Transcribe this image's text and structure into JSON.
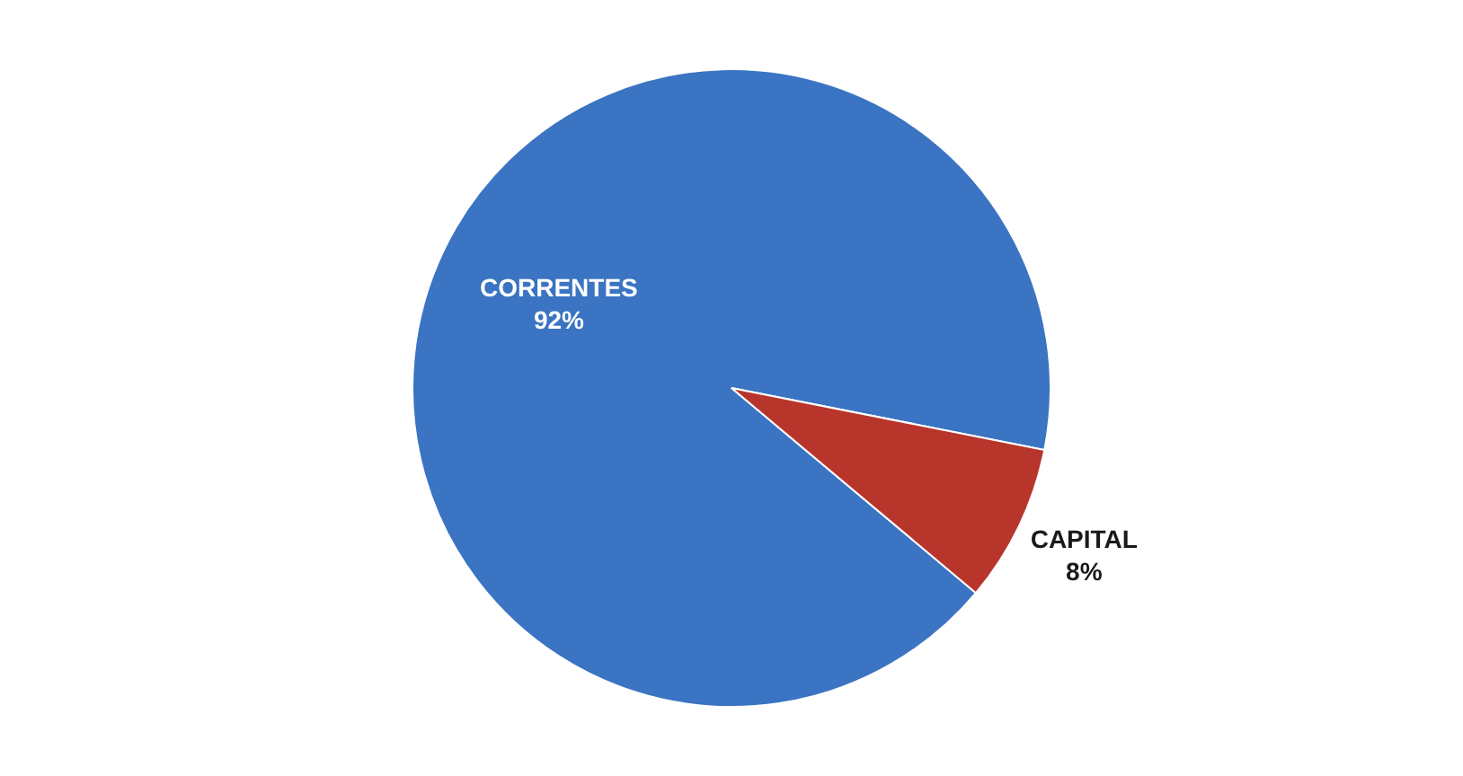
{
  "chart_data": {
    "type": "pie",
    "categories": [
      "CORRENTES",
      "CAPITAL"
    ],
    "values": [
      92,
      8
    ],
    "colors": [
      "#3a74c2",
      "#b8352c"
    ],
    "value_labels": [
      "92%",
      "8%"
    ],
    "legend": false
  }
}
